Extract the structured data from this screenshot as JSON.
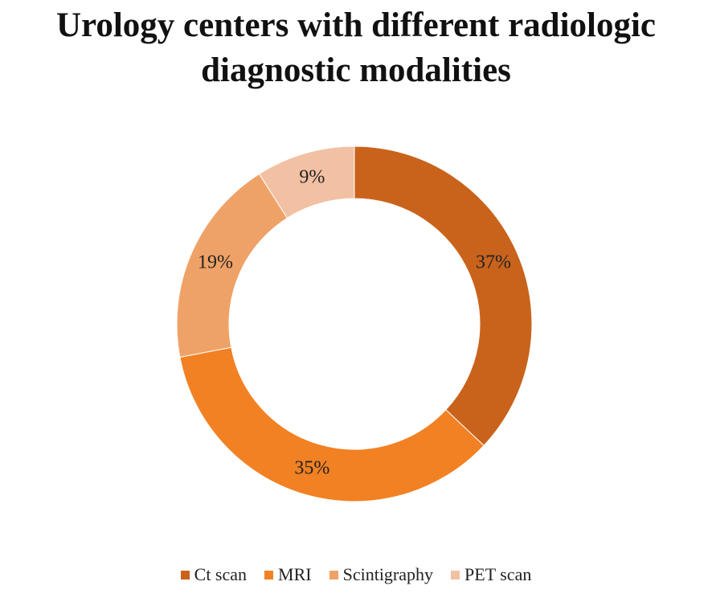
{
  "chart_data": {
    "type": "donut",
    "title": "Urology centers with different radiologic diagnostic modalities",
    "categories": [
      "Ct scan",
      "MRI",
      "Scintigraphy",
      "PET scan"
    ],
    "values": [
      37,
      35,
      19,
      9
    ],
    "value_labels": [
      "37%",
      "35%",
      "19%",
      "9%"
    ],
    "colors": [
      "#c9631c",
      "#f28123",
      "#efa267",
      "#f2c0a2"
    ],
    "legend": "bottom"
  }
}
